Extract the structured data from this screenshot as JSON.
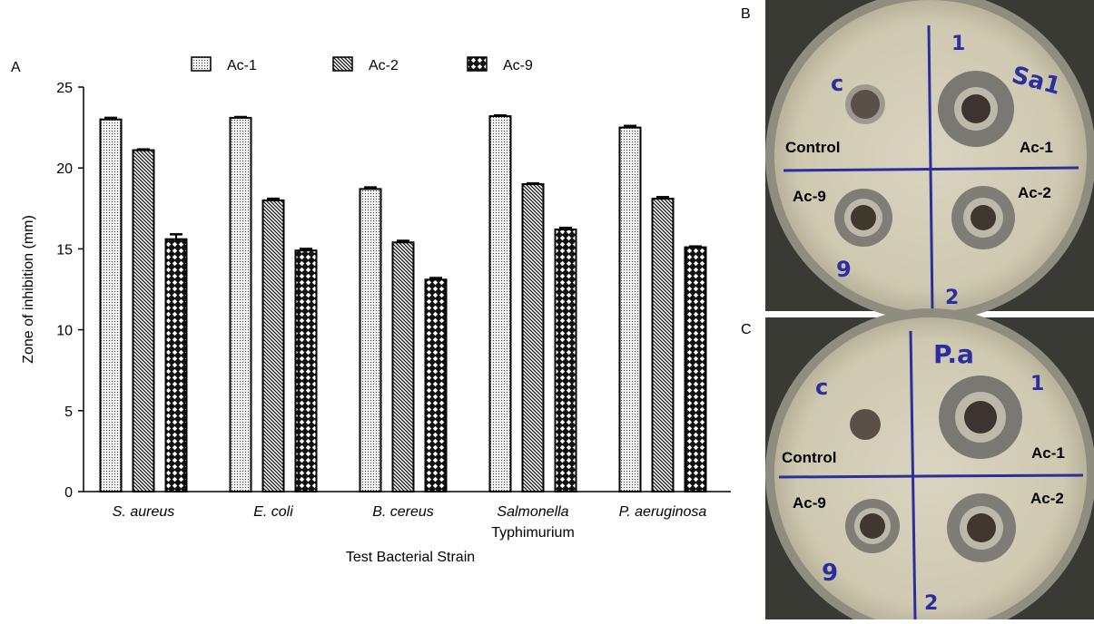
{
  "panel_labels": {
    "a": "A",
    "b": "B",
    "c": "C"
  },
  "chart_data": {
    "type": "bar",
    "title": "",
    "xlabel": "Test Bacterial Strain",
    "ylabel": "Zone of inhibition (mm)",
    "ylim": [
      0,
      25
    ],
    "yticks": [
      0,
      5,
      10,
      15,
      20,
      25
    ],
    "grid": false,
    "legend_position": "top",
    "categories": [
      {
        "line1": "S. aureus",
        "line2": "",
        "italic": true
      },
      {
        "line1": "E. coli",
        "line2": "",
        "italic": true
      },
      {
        "line1": "B. cereus",
        "line2": "",
        "italic": true
      },
      {
        "line1": "Salmonella",
        "line2": "Typhimurium",
        "italic": true
      },
      {
        "line1": "P. aeruginosa",
        "line2": "",
        "italic": true
      }
    ],
    "series": [
      {
        "name": "Ac-1",
        "pattern": "dots",
        "values": [
          23.0,
          23.1,
          18.7,
          23.2,
          22.5
        ],
        "errors": [
          0.1,
          0.05,
          0.1,
          0.05,
          0.1
        ]
      },
      {
        "name": "Ac-2",
        "pattern": "diagonal",
        "values": [
          21.1,
          18.0,
          15.4,
          19.0,
          18.1
        ],
        "errors": [
          0.05,
          0.1,
          0.1,
          0.05,
          0.1
        ]
      },
      {
        "name": "Ac-9",
        "pattern": "crosshatch",
        "values": [
          15.6,
          14.9,
          13.1,
          16.2,
          15.1
        ],
        "errors": [
          0.3,
          0.1,
          0.1,
          0.1,
          0.05
        ]
      }
    ]
  },
  "plates": {
    "b": {
      "labels": {
        "control": "Control",
        "ac1": "Ac-1",
        "ac2": "Ac-2",
        "ac9": "Ac-9"
      },
      "handwriting": {
        "c": "c",
        "one": "1",
        "strain": "Sa1",
        "nine": "9",
        "two": "2"
      }
    },
    "c": {
      "labels": {
        "control": "Control",
        "ac1": "Ac-1",
        "ac2": "Ac-2",
        "ac9": "Ac-9"
      },
      "handwriting": {
        "c": "c",
        "one": "1",
        "strain": "P.a",
        "nine": "9",
        "two": "2"
      }
    }
  }
}
